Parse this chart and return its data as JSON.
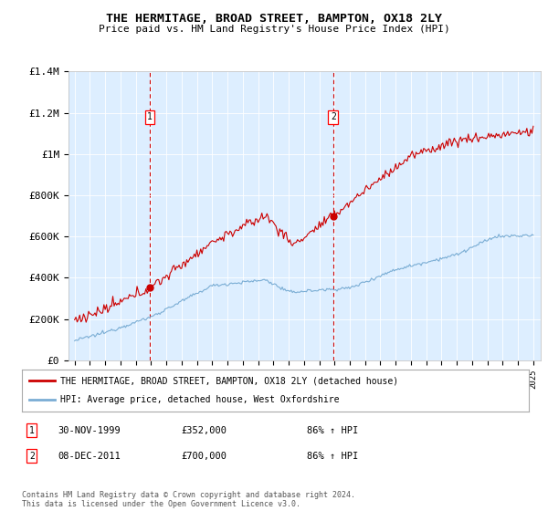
{
  "title": "THE HERMITAGE, BROAD STREET, BAMPTON, OX18 2LY",
  "subtitle": "Price paid vs. HM Land Registry's House Price Index (HPI)",
  "background_color": "#ffffff",
  "plot_bg_color": "#ddeeff",
  "ylim": [
    0,
    1400000
  ],
  "yticks": [
    0,
    200000,
    400000,
    600000,
    800000,
    1000000,
    1200000,
    1400000
  ],
  "ytick_labels": [
    "£0",
    "£200K",
    "£400K",
    "£600K",
    "£800K",
    "£1M",
    "£1.2M",
    "£1.4M"
  ],
  "sale1_date": 1999.92,
  "sale1_price": 352000,
  "sale1_label": "1",
  "sale2_date": 2011.92,
  "sale2_price": 700000,
  "sale2_label": "2",
  "legend_line1": "THE HERMITAGE, BROAD STREET, BAMPTON, OX18 2LY (detached house)",
  "legend_line2": "HPI: Average price, detached house, West Oxfordshire",
  "footer": "Contains HM Land Registry data © Crown copyright and database right 2024.\nThis data is licensed under the Open Government Licence v3.0.",
  "red_color": "#cc0000",
  "blue_color": "#7aadd4"
}
